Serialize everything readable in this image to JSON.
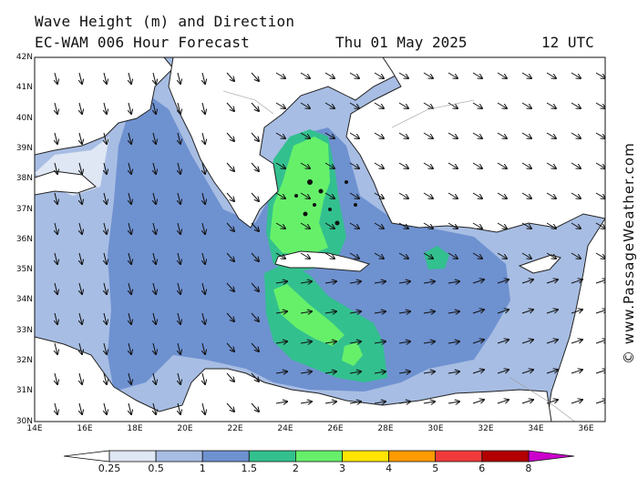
{
  "header": {
    "title": "Wave Height (m) and Direction",
    "model": "EC-WAM 006 Hour Forecast",
    "date": "Thu 01 May 2025",
    "time": "12 UTC"
  },
  "credit": "© www.PassageWeather.com",
  "axes": {
    "lat_labels": [
      "42N",
      "41N",
      "40N",
      "39N",
      "38N",
      "37N",
      "36N",
      "35N",
      "34N",
      "33N",
      "32N",
      "31N",
      "30N"
    ],
    "lon_labels": [
      "14E",
      "16E",
      "18E",
      "20E",
      "22E",
      "24E",
      "26E",
      "28E",
      "30E",
      "32E",
      "34E",
      "36E"
    ]
  },
  "legend": {
    "labels": [
      "0.25",
      "0.5",
      "1",
      "1.5",
      "2",
      "3",
      "4",
      "5",
      "6",
      "8"
    ],
    "colors": [
      "#ffffff",
      "#dfe6f4",
      "#a7bde3",
      "#6e91d0",
      "#33c08f",
      "#66f06a",
      "#ffe500",
      "#ff9a00",
      "#f03a3a",
      "#b30000",
      "#cc00cc"
    ]
  },
  "map_colors": {
    "land": "#ffffff",
    "sea_0_25": "#dfe6f4",
    "sea_0_5": "#a7bde3",
    "sea_1": "#6e91d0",
    "sea_1_5": "#33c08f",
    "sea_2": "#66f06a"
  }
}
